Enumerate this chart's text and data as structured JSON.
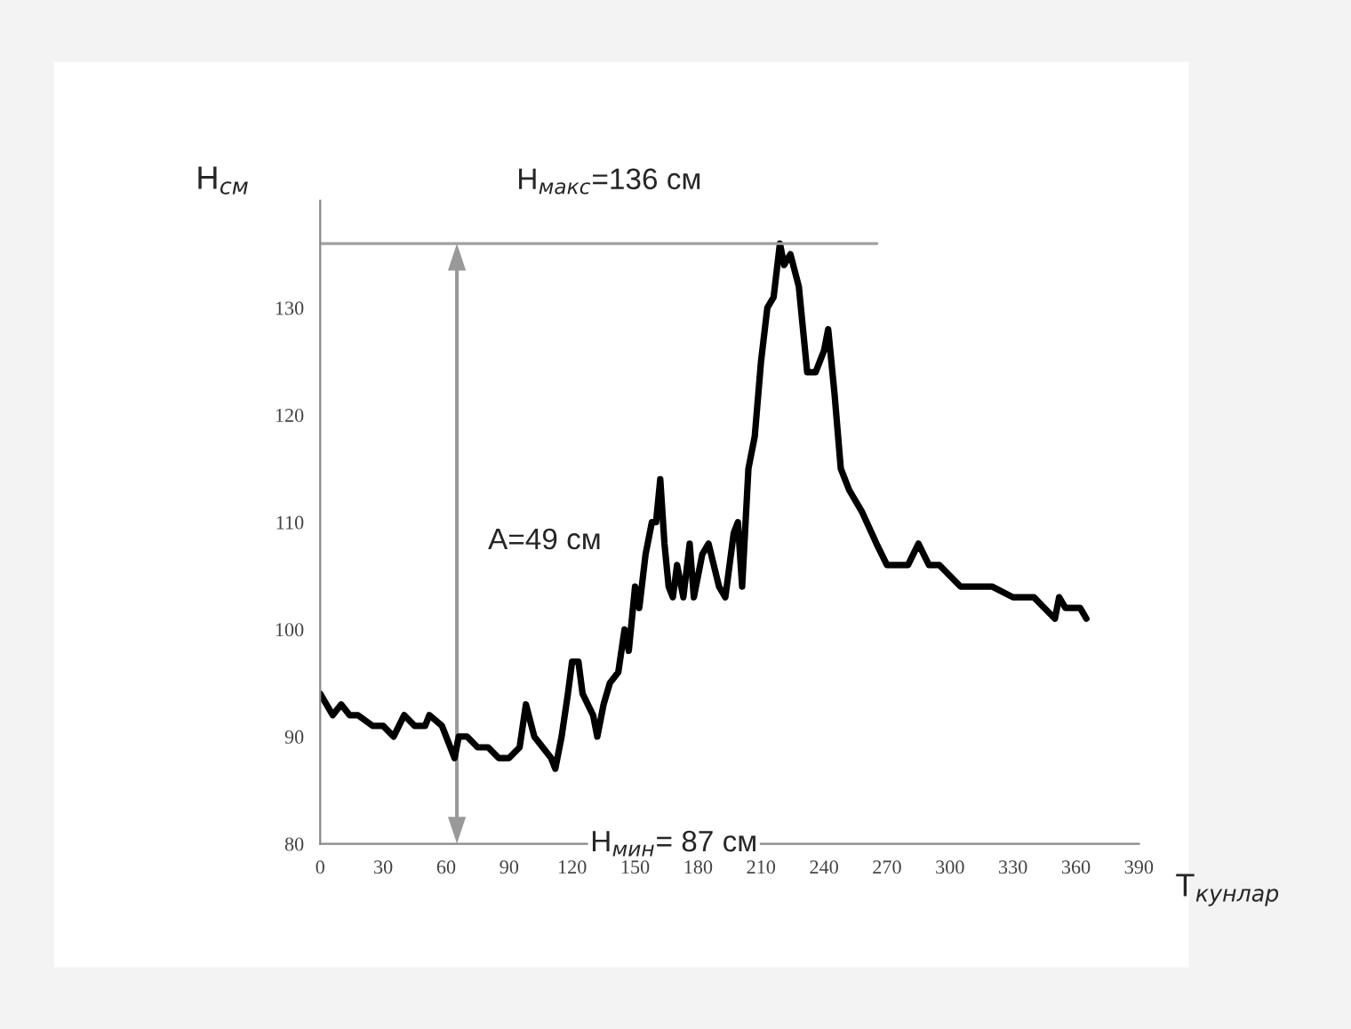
{
  "chart_data": {
    "type": "line",
    "xlabel": "T$_{кунлар}$",
    "ylabel": "H$_{см}$",
    "x": [
      0,
      3,
      6,
      10,
      14,
      18,
      25,
      30,
      35,
      40,
      45,
      50,
      52,
      58,
      62,
      64,
      66,
      70,
      75,
      80,
      85,
      90,
      95,
      98,
      102,
      106,
      110,
      112,
      115,
      118,
      120,
      123,
      125,
      130,
      132,
      135,
      138,
      142,
      145,
      147,
      150,
      152,
      155,
      158,
      160,
      162,
      164,
      166,
      168,
      170,
      173,
      176,
      178,
      182,
      185,
      190,
      193,
      197,
      199,
      201,
      204,
      207,
      210,
      213,
      216,
      219,
      221,
      224,
      228,
      232,
      236,
      240,
      242,
      245,
      248,
      252,
      258,
      265,
      270,
      280,
      285,
      290,
      295,
      300,
      305,
      320,
      330,
      340,
      345,
      350,
      352,
      355,
      362,
      365
    ],
    "series": [
      {
        "color": "#000000",
        "values": [
          94,
          93,
          92,
          93,
          92,
          92,
          91,
          91,
          90,
          92,
          91,
          91,
          92,
          91,
          89,
          88,
          90,
          90,
          89,
          89,
          88,
          88,
          89,
          93,
          90,
          89,
          88,
          87,
          90,
          94,
          97,
          97,
          94,
          92,
          90,
          93,
          95,
          96,
          100,
          98,
          104,
          102,
          107,
          110,
          110,
          114,
          108,
          104,
          103,
          106,
          103,
          108,
          103,
          107,
          108,
          104,
          103,
          109,
          110,
          104,
          115,
          118,
          125,
          130,
          131,
          136,
          134,
          135,
          132,
          124,
          124,
          126,
          128,
          122,
          115,
          113,
          111,
          108,
          106,
          106,
          108,
          106,
          106,
          105,
          104,
          104,
          103,
          103,
          102,
          101,
          103,
          102,
          102,
          101
        ]
      }
    ],
    "xlim": [
      0,
      390
    ],
    "xticks": [
      0,
      30,
      60,
      90,
      120,
      150,
      180,
      210,
      240,
      270,
      300,
      330,
      360,
      390
    ],
    "ylim": [
      80,
      140
    ],
    "yticks": [
      80,
      90,
      100,
      110,
      120,
      130
    ],
    "grid": false,
    "legend": false,
    "marker": "none",
    "line_style": "solid",
    "ref_lines": [
      {
        "axis": "y",
        "value": 136,
        "label": "H$_{макс}$=136 см",
        "color": "#a0a0a0"
      }
    ],
    "annotations": [
      "A=49 см",
      "H$_{мин}$= 87 см"
    ]
  }
}
